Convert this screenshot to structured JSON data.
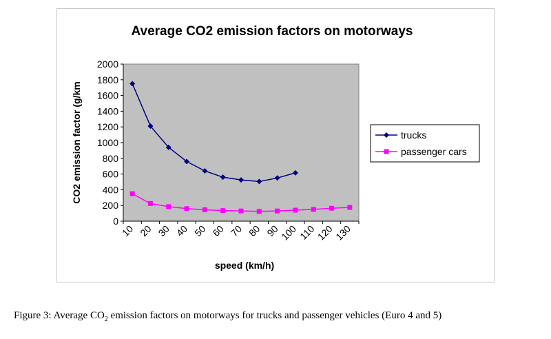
{
  "caption": {
    "prefix": "Figure 3: Average CO",
    "subscript": "2",
    "suffix": " emission factors on motorways for trucks and passenger vehicles (Euro 4 and 5)"
  },
  "chart_data": {
    "type": "line",
    "title": "Average CO2 emission factors on motorways",
    "xlabel": "speed (km/h)",
    "ylabel": "CO2 emission factor (g/km",
    "categories": [
      "10",
      "20",
      "30",
      "40",
      "50",
      "60",
      "70",
      "80",
      "90",
      "100",
      "110",
      "120",
      "130"
    ],
    "ylim": [
      0,
      2000
    ],
    "yticks": [
      0,
      200,
      400,
      600,
      800,
      1000,
      1200,
      1400,
      1600,
      1800,
      2000
    ],
    "grid": false,
    "legend": "right",
    "plot_background": "#c0c0c0",
    "series": [
      {
        "name": "trucks",
        "color": "#000080",
        "marker": "diamond",
        "values": [
          1750,
          1210,
          940,
          760,
          640,
          560,
          525,
          505,
          550,
          615,
          null,
          null,
          null
        ]
      },
      {
        "name": "passenger cars",
        "color": "#ff00ff",
        "marker": "square",
        "values": [
          350,
          225,
          185,
          160,
          145,
          135,
          130,
          125,
          130,
          140,
          150,
          165,
          175
        ]
      }
    ]
  }
}
